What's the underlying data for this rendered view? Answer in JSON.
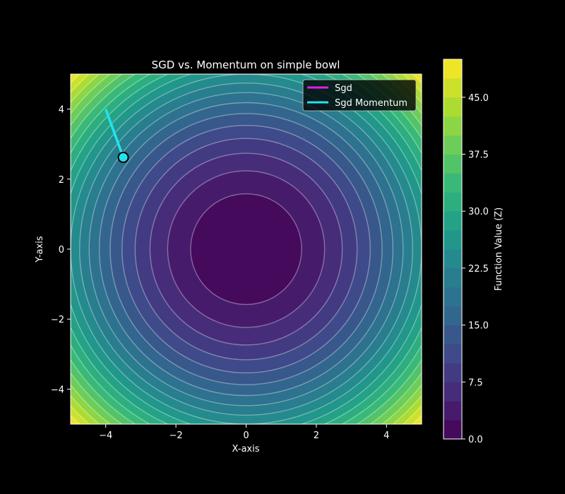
{
  "chart_data": {
    "type": "contour",
    "title": "SGD vs. Momentum on simple bowl",
    "xlabel": "X-axis",
    "ylabel": "Y-axis",
    "xlim": [
      -5,
      5
    ],
    "ylim": [
      -5,
      5
    ],
    "x_ticks": [
      -4,
      -2,
      0,
      2,
      4
    ],
    "x_tick_labels": [
      "−4",
      "−2",
      "0",
      "2",
      "4"
    ],
    "y_ticks": [
      -4,
      -2,
      0,
      2,
      4
    ],
    "y_tick_labels": [
      "−4",
      "−2",
      "0",
      "2",
      "4"
    ],
    "function": "x^2 + y^2",
    "levels": [
      0,
      2.5,
      5,
      7.5,
      10,
      12.5,
      15,
      17.5,
      20,
      22.5,
      25,
      27.5,
      30,
      32.5,
      35,
      37.5,
      40,
      42.5,
      45,
      47.5,
      50
    ],
    "colormap": "viridis",
    "colorbar": {
      "label": "Function Value (Z)",
      "ticks": [
        0,
        7.5,
        15,
        22.5,
        30,
        37.5,
        45
      ],
      "tick_labels": [
        "0.0",
        "7.5",
        "15.0",
        "22.5",
        "30.0",
        "37.5",
        "45.0"
      ],
      "range": [
        0,
        50
      ]
    },
    "series": [
      {
        "name": "Sgd",
        "color": "#e020e0",
        "x": [],
        "y": []
      },
      {
        "name": "Sgd Momentum",
        "color": "#22e4ee",
        "x": [
          -4.0,
          -3.5
        ],
        "y": [
          4.0,
          2.62
        ]
      }
    ],
    "current_point": {
      "x": -3.5,
      "y": 2.62,
      "color": "#22e4ee"
    },
    "legend_position": "top-right",
    "colors": {
      "background": "#000000",
      "text": "#ffffff",
      "contour_line": "#ffffff"
    }
  }
}
